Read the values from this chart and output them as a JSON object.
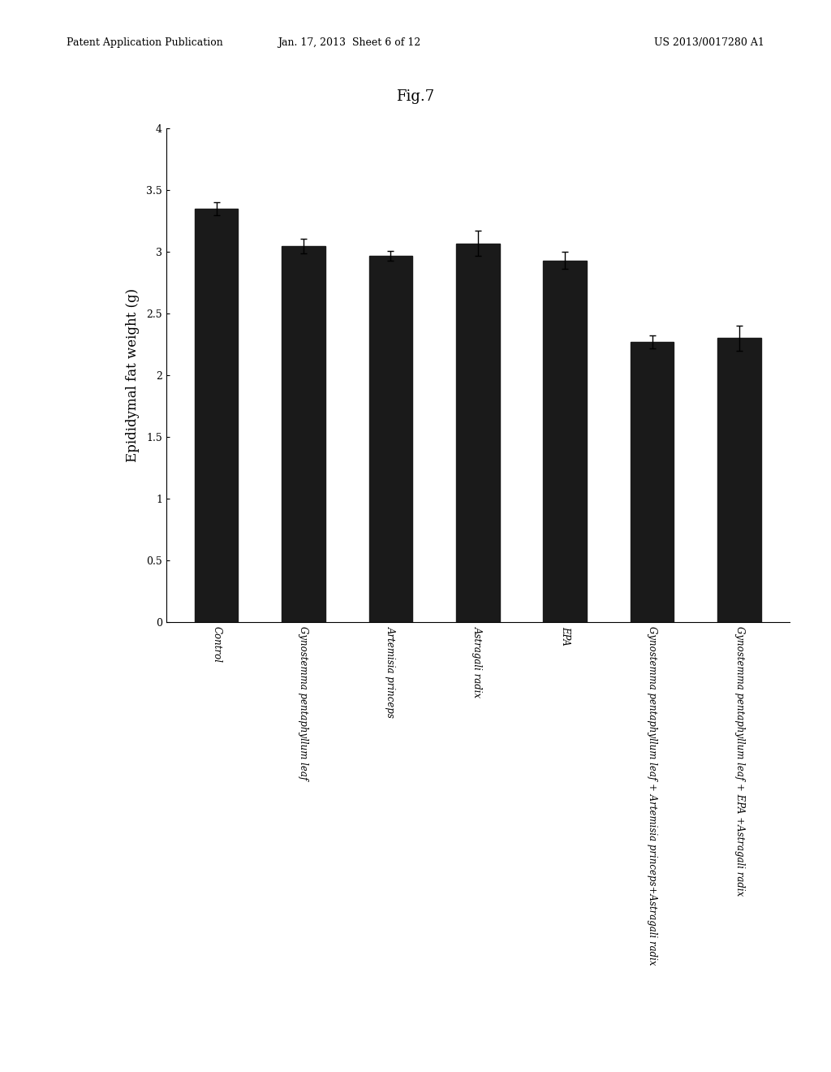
{
  "title": "Fig.7",
  "ylabel": "Epididymal fat weight (g)",
  "categories": [
    "Control",
    "Gynostemma pentaphyllum leaf",
    "Artemisia princeps",
    "Astragali radix",
    "EPA",
    "Gynostemma pentaphyllum leaf + Artemisia princeps+Astragali radix",
    "Gynostemma pentaphyllum leaf + EPA +Astragali radix"
  ],
  "values": [
    3.35,
    3.05,
    2.97,
    3.07,
    2.93,
    2.27,
    2.3
  ],
  "errors": [
    0.05,
    0.06,
    0.04,
    0.1,
    0.07,
    0.05,
    0.1
  ],
  "bar_color": "#1a1a1a",
  "error_color": "#000000",
  "ylim": [
    0,
    4
  ],
  "yticks": [
    0,
    0.5,
    1,
    1.5,
    2,
    2.5,
    3,
    3.5,
    4
  ],
  "ytick_labels": [
    "0",
    "0.5",
    "1",
    "1.5",
    "2",
    "2.5",
    "3",
    "3.5",
    "4"
  ],
  "background_color": "#ffffff",
  "title_fontsize": 13,
  "ylabel_fontsize": 12,
  "tick_fontsize": 9,
  "bar_width": 0.5,
  "header_left": "Patent Application Publication",
  "header_center": "Jan. 17, 2013  Sheet 6 of 12",
  "header_right": "US 2013/0017280 A1",
  "header_fontsize": 9
}
